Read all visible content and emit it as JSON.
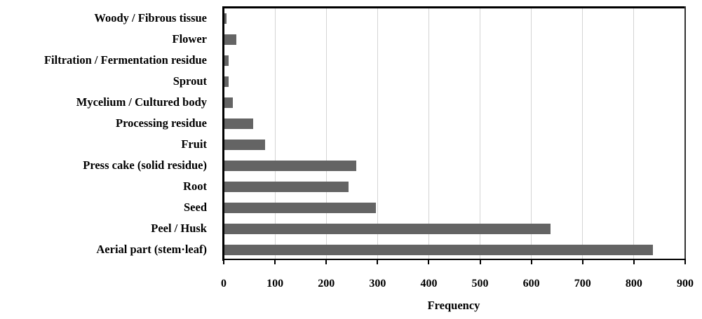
{
  "chart_data": {
    "type": "bar",
    "orientation": "horizontal",
    "title": "",
    "xlabel": "Frequency",
    "ylabel": "",
    "xlim": [
      0,
      900
    ],
    "xticks": [
      0,
      100,
      200,
      300,
      400,
      500,
      600,
      700,
      800,
      900
    ],
    "grid": "vertical",
    "legend": "none",
    "bar_color": "#646464",
    "categories": [
      "Woody / Fibrous tissue",
      "Flower",
      "Filtration / Fermentation residue",
      "Sprout",
      "Mycelium / Cultured body",
      "Processing residue",
      "Fruit",
      "Press cake (solid residue)",
      "Root",
      "Seed",
      "Peel / Husk",
      "Aerial part (stem·leaf)"
    ],
    "values": [
      6,
      25,
      10,
      10,
      18,
      57,
      81,
      259,
      243,
      297,
      637,
      837
    ]
  }
}
